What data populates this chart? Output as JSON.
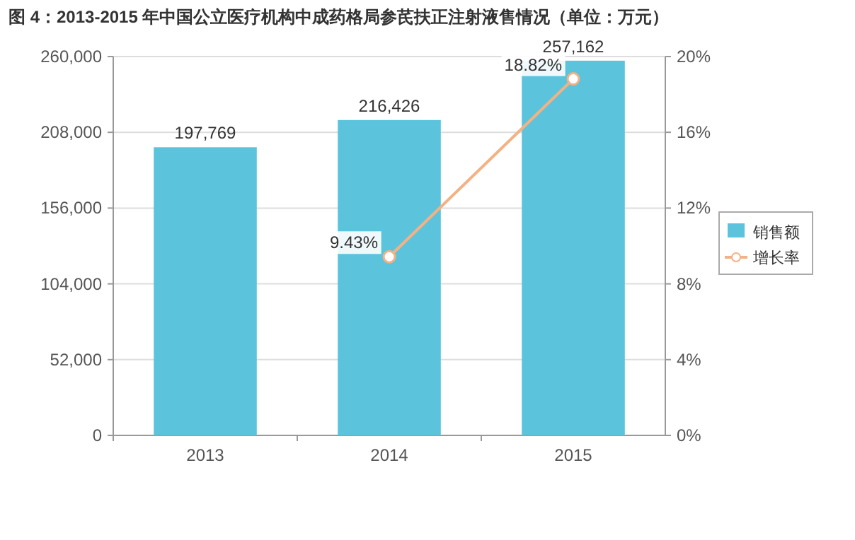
{
  "chart_data": {
    "type": "bar",
    "title": "图 4：2013-2015 年中国公立医疗机构中成药格局参芪扶正注射液售情况（单位：万元）",
    "categories": [
      "2013",
      "2014",
      "2015"
    ],
    "series": [
      {
        "name": "销售额",
        "color": "#5bc4dc",
        "values": [
          197769,
          216426,
          257162
        ],
        "value_labels": [
          "197,769",
          "216,426",
          "257,162"
        ]
      },
      {
        "name": "增长率",
        "type": "line",
        "axis": "y2",
        "color": "#f4b183",
        "values": [
          null,
          9.43,
          18.82
        ],
        "value_labels": [
          null,
          "9.43%",
          "18.82%"
        ]
      }
    ],
    "ylim": [
      0,
      260000
    ],
    "yticks": [
      {
        "value": 0,
        "label": "0"
      },
      {
        "value": 52000,
        "label": "52,000"
      },
      {
        "value": 104000,
        "label": "104,000"
      },
      {
        "value": 156000,
        "label": "156,000"
      },
      {
        "value": 208000,
        "label": "208,000"
      },
      {
        "value": 260000,
        "label": "260,000"
      }
    ],
    "y2lim": [
      0,
      20
    ],
    "y2ticks": [
      {
        "value": 0,
        "label": "0%"
      },
      {
        "value": 4,
        "label": "4%"
      },
      {
        "value": 8,
        "label": "8%"
      },
      {
        "value": 12,
        "label": "12%"
      },
      {
        "value": 16,
        "label": "16%"
      },
      {
        "value": 20,
        "label": "20%"
      }
    ],
    "grid": "y",
    "legend": "right",
    "marker": "circle"
  }
}
